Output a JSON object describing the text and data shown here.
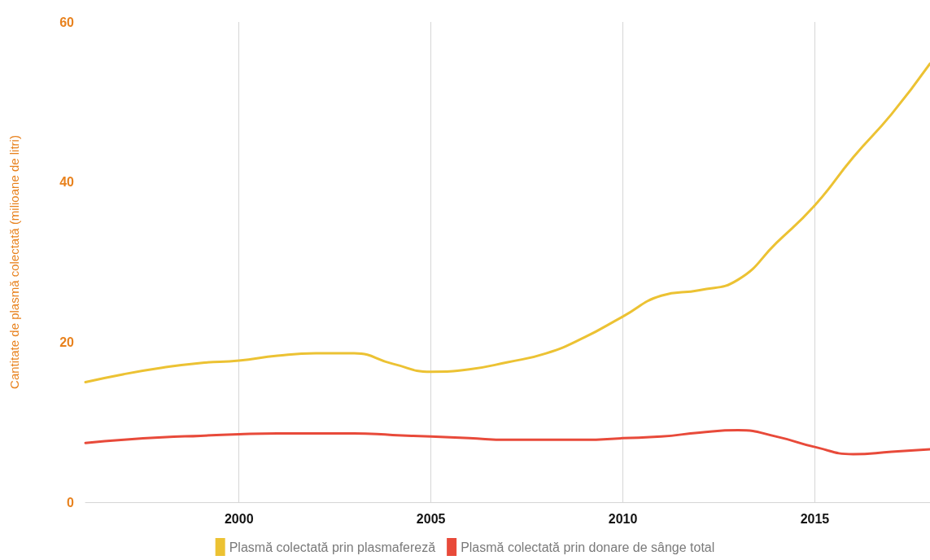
{
  "chart_data": {
    "type": "line",
    "ylabel": "Cantitate de plasmă colectată (milioane de litri)",
    "x": [
      1996,
      1997,
      1998,
      1999,
      2000,
      2001,
      2002,
      2003,
      2004,
      2005,
      2006,
      2007,
      2008,
      2009,
      2010,
      2011,
      2012,
      2013,
      2014,
      2015,
      2016,
      2017,
      2018
    ],
    "series": [
      {
        "name": "Plasmă colectată prin plasmafereză",
        "color": "#ecc233",
        "values": [
          15.0,
          16.0,
          16.8,
          17.4,
          17.7,
          18.3,
          18.6,
          18.6,
          17.3,
          16.3,
          16.6,
          17.5,
          18.6,
          20.6,
          23.2,
          25.8,
          26.5,
          27.8,
          32.4,
          37.1,
          43.1,
          48.5,
          54.8
        ]
      },
      {
        "name": "Plasmă colectată prin donare de sânge total",
        "color": "#e84a3a",
        "values": [
          7.4,
          7.8,
          8.1,
          8.3,
          8.5,
          8.6,
          8.6,
          8.6,
          8.4,
          8.2,
          8.0,
          7.8,
          7.8,
          7.8,
          8.0,
          8.2,
          8.7,
          9.0,
          8.2,
          6.9,
          6.0,
          6.3,
          6.6
        ]
      }
    ],
    "xlim": [
      1996,
      2018
    ],
    "xticks": [
      2000,
      2005,
      2010,
      2015
    ],
    "ylim": [
      0,
      60
    ],
    "yticks": [
      0,
      20,
      40,
      60
    ],
    "grid": "x",
    "legend": "bottom",
    "marker": "none",
    "line_style": "solid"
  }
}
